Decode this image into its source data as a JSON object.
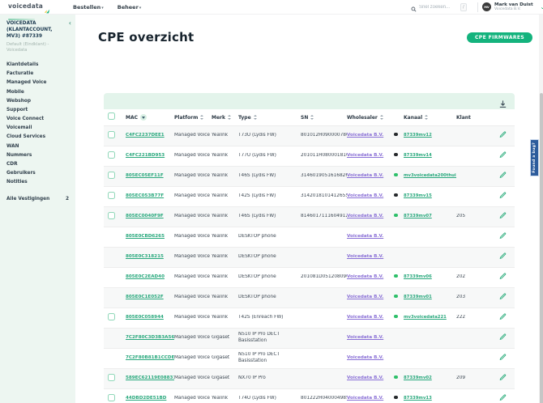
{
  "header": {
    "logo_text": "voicedata",
    "nav": [
      {
        "label": "Bestellen"
      },
      {
        "label": "Beheer"
      }
    ],
    "search": {
      "placeholder": "Snel zoeken...",
      "shortcut": "/"
    },
    "user": {
      "initials": "MV",
      "name": "Mark van Duist",
      "company": "Voicedata B.V."
    }
  },
  "sidebar": {
    "account_title": "VOICEDATA (KLANTACCOUNT, MV3) #87339",
    "account_subtitle": "Default (Eindklant) - Voicedata",
    "items": [
      "Klantdetails",
      "Facturatie",
      "Managed Voice",
      "Mobile",
      "Webshop",
      "Support",
      "Voice Connect",
      "Voicemail",
      "Cloud Services",
      "WAN",
      "Nummers",
      "CDR",
      "Gebruikers",
      "Notities"
    ],
    "footer": {
      "label": "Alle Vestigingen",
      "count": "2"
    }
  },
  "main": {
    "title": "CPE overzicht",
    "firmware_button": "CPE FIRMWARES",
    "table": {
      "columns": [
        "MAC",
        "Platform",
        "Merk",
        "Type",
        "SN",
        "Wholesaler",
        "Kanaal",
        "Klant"
      ],
      "rows": [
        {
          "checkbox": true,
          "mac": "C4FC2237DEE1",
          "platform": "Managed Voice",
          "merk": "Yealink",
          "type": "T73U (Lydis FW)",
          "sn": "801012H090000786",
          "wholesaler": "Voicedata B.V.",
          "status": "offline",
          "kanaal": "87339mv12",
          "klant": ""
        },
        {
          "checkbox": true,
          "mac": "C4FC221BD953",
          "platform": "Managed Voice",
          "merk": "Yealink",
          "type": "T77U (Lydis FW)",
          "sn": "201011H080001816",
          "wholesaler": "Voicedata B.V.",
          "status": "offline",
          "kanaal": "87339mv14",
          "klant": ""
        },
        {
          "checkbox": true,
          "mac": "805EC05EF11F",
          "platform": "Managed Voice",
          "merk": "Yealink",
          "type": "T46S (Lydis FW)",
          "sn": "3146019051616826",
          "wholesaler": "Voicedata B.V.",
          "status": "online",
          "kanaal": "mv3voicedata200thuis",
          "klant": ""
        },
        {
          "checkbox": true,
          "mac": "805EC053B77F",
          "platform": "Managed Voice",
          "merk": "Yealink",
          "type": "T42S (Lydis FW)",
          "sn": "3142018101412655",
          "wholesaler": "Voicedata B.V.",
          "status": "offline",
          "kanaal": "87339mv15",
          "klant": ""
        },
        {
          "checkbox": true,
          "mac": "805EC0040F9F",
          "platform": "Managed Voice",
          "merk": "Yealink",
          "type": "T46S (Lydis FW)",
          "sn": "8146017111604912",
          "wholesaler": "Voicedata B.V.",
          "status": "online",
          "kanaal": "87339mv07",
          "klant": "205"
        },
        {
          "checkbox": false,
          "mac": "805E0CBD6265",
          "platform": "Managed Voice",
          "merk": "Yealink",
          "type": "DESKTOP phone",
          "sn": "",
          "wholesaler": "Voicedata B.V.",
          "status": "",
          "kanaal": "",
          "klant": ""
        },
        {
          "checkbox": false,
          "mac": "805E0C318215",
          "platform": "Managed Voice",
          "merk": "Yealink",
          "type": "DESKTOP phone",
          "sn": "",
          "wholesaler": "Voicedata B.V.",
          "status": "",
          "kanaal": "",
          "klant": ""
        },
        {
          "checkbox": false,
          "mac": "805E0C2EAD40",
          "platform": "Managed Voice",
          "merk": "Yealink",
          "type": "DESKTOP phone",
          "sn": "201081D051208090",
          "wholesaler": "Voicedata B.V.",
          "status": "online",
          "kanaal": "87339mv06",
          "klant": "202"
        },
        {
          "checkbox": false,
          "mac": "805E0C1E052F",
          "platform": "Managed Voice",
          "merk": "Yealink",
          "type": "DESKTOP phone",
          "sn": "",
          "wholesaler": "Voicedata B.V.",
          "status": "online",
          "kanaal": "87339mv01",
          "klant": "203"
        },
        {
          "checkbox": true,
          "mac": "805E0C058944",
          "platform": "Managed Voice",
          "merk": "Yealink",
          "type": "T42S (Enreach FW)",
          "sn": "",
          "wholesaler": "Voicedata B.V.",
          "status": "online",
          "kanaal": "mv3voicedata221",
          "klant": "222"
        },
        {
          "checkbox": false,
          "mac": "7C2F80C3D3B3A56D",
          "platform": "Managed Voice",
          "merk": "Gigaset",
          "type": "N510 IP Pro DECT Basisstation",
          "sn": "",
          "wholesaler": "Voicedata B.V.",
          "status": "",
          "kanaal": "",
          "klant": ""
        },
        {
          "checkbox": false,
          "mac": "7C2F80B81B1CCDEA",
          "platform": "Managed Voice",
          "merk": "Gigaset",
          "type": "N510 IP Pro DECT Basisstation",
          "sn": "",
          "wholesaler": "Voicedata B.V.",
          "status": "",
          "kanaal": "",
          "klant": ""
        },
        {
          "checkbox": true,
          "mac": "589EC62119E08831",
          "platform": "Managed Voice",
          "merk": "Gigaset",
          "type": "NX70 IP Pro",
          "sn": "",
          "wholesaler": "Voicedata B.V.",
          "status": "online",
          "kanaal": "87339mv02",
          "klant": "209"
        },
        {
          "checkbox": true,
          "mac": "44DBD2DE51BD",
          "platform": "Managed Voice",
          "merk": "Yealink",
          "type": "T74U (Lydis FW)",
          "sn": "801222H040004985",
          "wholesaler": "Voicedata B.V.",
          "status": "offline",
          "kanaal": "87339mv13",
          "klant": ""
        }
      ]
    }
  },
  "feedback": {
    "label": "Found a bug?"
  },
  "colors": {
    "accent_green": "#14b37d",
    "link_green": "#28a87c",
    "link_purple": "#8a70d6",
    "status_online": "#2ec06a",
    "status_offline": "#26292c",
    "sidebar_bg": "#edf6f1",
    "table_band": "#e3f4eb",
    "feedback_blue": "#2d5c9c"
  }
}
